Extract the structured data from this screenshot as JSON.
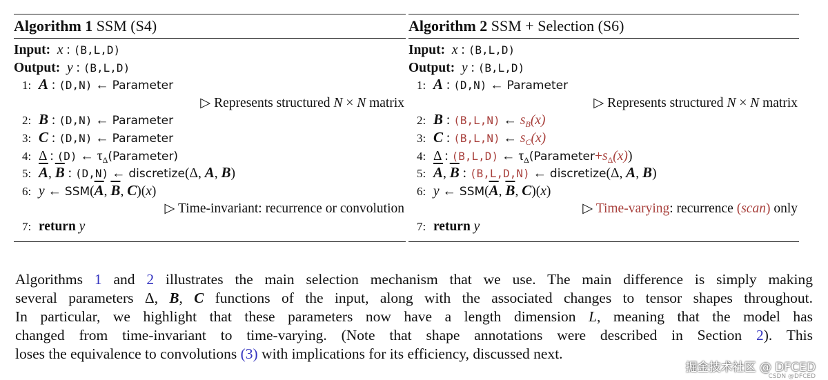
{
  "algorithms": [
    {
      "label": "Algorithm 1",
      "name": "SSM (S4)",
      "lines": [
        {
          "kind": "io",
          "segs": [
            {
              "t": "Input:",
              "c": "b"
            },
            {
              "t": "  x",
              "c": "i"
            },
            {
              "t": " : "
            },
            {
              "t": "(B,L,D)",
              "c": "t"
            }
          ]
        },
        {
          "kind": "io",
          "segs": [
            {
              "t": "Output:",
              "c": "b"
            },
            {
              "t": "  y",
              "c": "i"
            },
            {
              "t": " : "
            },
            {
              "t": "(B,L,D)",
              "c": "t"
            }
          ]
        },
        {
          "kind": "ind",
          "num": "1:",
          "segs": [
            {
              "t": "A",
              "c": "m"
            },
            {
              "t": " : "
            },
            {
              "t": "(D,N)",
              "c": "t"
            },
            {
              "t": " ← "
            },
            {
              "t": "Parameter",
              "c": "s"
            }
          ]
        },
        {
          "kind": "cmt",
          "segs": [
            {
              "t": "▷ Represents structured "
            },
            {
              "t": "N",
              "c": "i"
            },
            {
              "t": " × "
            },
            {
              "t": "N",
              "c": "i"
            },
            {
              "t": " matrix"
            }
          ]
        },
        {
          "kind": "ind",
          "num": "2:",
          "segs": [
            {
              "t": "B",
              "c": "m"
            },
            {
              "t": " : "
            },
            {
              "t": "(D,N)",
              "c": "t"
            },
            {
              "t": " ← "
            },
            {
              "t": "Parameter",
              "c": "s"
            }
          ]
        },
        {
          "kind": "ind",
          "num": "3:",
          "segs": [
            {
              "t": "C",
              "c": "m"
            },
            {
              "t": " : "
            },
            {
              "t": "(D,N)",
              "c": "t"
            },
            {
              "t": " ← "
            },
            {
              "t": "Parameter",
              "c": "s"
            }
          ]
        },
        {
          "kind": "ind",
          "num": "4:",
          "segs": [
            {
              "t": "Δ"
            },
            {
              "t": " : "
            },
            {
              "t": "(D)",
              "c": "t"
            },
            {
              "t": " ← τ"
            },
            {
              "t": "Δ",
              "c": "sub"
            },
            {
              "t": "(Parameter)",
              "c": "s"
            }
          ]
        },
        {
          "kind": "ind",
          "num": "5:",
          "segs": [
            {
              "t": "A",
              "c": "m ol"
            },
            {
              "t": ", "
            },
            {
              "t": "B",
              "c": "m ol"
            },
            {
              "t": " : "
            },
            {
              "t": "(D,N)",
              "c": "t"
            },
            {
              "t": " ← "
            },
            {
              "t": "discretize",
              "c": "s"
            },
            {
              "t": "(Δ, "
            },
            {
              "t": "A",
              "c": "m"
            },
            {
              "t": ", "
            },
            {
              "t": "B",
              "c": "m"
            },
            {
              "t": ")"
            }
          ]
        },
        {
          "kind": "ind",
          "num": "6:",
          "segs": [
            {
              "t": "y",
              "c": "i"
            },
            {
              "t": " ← "
            },
            {
              "t": "SSM",
              "c": "s"
            },
            {
              "t": "("
            },
            {
              "t": "A",
              "c": "m ol"
            },
            {
              "t": ", "
            },
            {
              "t": "B",
              "c": "m ol"
            },
            {
              "t": ", "
            },
            {
              "t": "C",
              "c": "m"
            },
            {
              "t": ")("
            },
            {
              "t": "x",
              "c": "i"
            },
            {
              "t": ")"
            }
          ]
        },
        {
          "kind": "cmt",
          "segs": [
            {
              "t": "▷ Time-invariant: recurrence or convolution"
            }
          ]
        },
        {
          "kind": "ind",
          "num": "7:",
          "segs": [
            {
              "t": "return",
              "c": "b"
            },
            {
              "t": " y",
              "c": "i"
            }
          ]
        }
      ]
    },
    {
      "label": "Algorithm 2",
      "name": "SSM + Selection (S6)",
      "lines": [
        {
          "kind": "io",
          "segs": [
            {
              "t": "Input:",
              "c": "b"
            },
            {
              "t": "  x",
              "c": "i"
            },
            {
              "t": " : "
            },
            {
              "t": "(B,L,D)",
              "c": "t"
            }
          ]
        },
        {
          "kind": "io",
          "segs": [
            {
              "t": "Output:",
              "c": "b"
            },
            {
              "t": "  y",
              "c": "i"
            },
            {
              "t": " : "
            },
            {
              "t": "(B,L,D)",
              "c": "t"
            }
          ]
        },
        {
          "kind": "ind",
          "num": "1:",
          "segs": [
            {
              "t": "A",
              "c": "m"
            },
            {
              "t": " : "
            },
            {
              "t": "(D,N)",
              "c": "t"
            },
            {
              "t": " ← "
            },
            {
              "t": "Parameter",
              "c": "s"
            }
          ]
        },
        {
          "kind": "cmt",
          "segs": [
            {
              "t": "▷ Represents structured "
            },
            {
              "t": "N",
              "c": "i"
            },
            {
              "t": " × "
            },
            {
              "t": "N",
              "c": "i"
            },
            {
              "t": " matrix"
            }
          ]
        },
        {
          "kind": "ind",
          "num": "2:",
          "segs": [
            {
              "t": "B",
              "c": "m"
            },
            {
              "t": " : "
            },
            {
              "t": "(B,L,N)",
              "c": "t r"
            },
            {
              "t": " ← "
            },
            {
              "t": "s",
              "c": "i r"
            },
            {
              "t": "B",
              "c": "sub i r"
            },
            {
              "t": "(x)",
              "c": "i r"
            }
          ]
        },
        {
          "kind": "ind",
          "num": "3:",
          "segs": [
            {
              "t": "C",
              "c": "m"
            },
            {
              "t": " : "
            },
            {
              "t": "(B,L,N)",
              "c": "t r"
            },
            {
              "t": " ← "
            },
            {
              "t": "s",
              "c": "i r"
            },
            {
              "t": "C",
              "c": "sub i r"
            },
            {
              "t": "(x)",
              "c": "i r"
            }
          ]
        },
        {
          "kind": "ind",
          "num": "4:",
          "segs": [
            {
              "t": "Δ"
            },
            {
              "t": " : "
            },
            {
              "t": "(B,L,D)",
              "c": "t r"
            },
            {
              "t": " ← τ"
            },
            {
              "t": "Δ",
              "c": "sub"
            },
            {
              "t": "(Parameter",
              "c": "s"
            },
            {
              "t": "+",
              "c": "r"
            },
            {
              "t": "s",
              "c": "i r"
            },
            {
              "t": "Δ",
              "c": "sub r"
            },
            {
              "t": "(x)",
              "c": "i r"
            },
            {
              "t": ")"
            }
          ]
        },
        {
          "kind": "ind",
          "num": "5:",
          "segs": [
            {
              "t": "A",
              "c": "m ol"
            },
            {
              "t": ", "
            },
            {
              "t": "B",
              "c": "m ol"
            },
            {
              "t": " : "
            },
            {
              "t": "(B,L,D,N)",
              "c": "t r"
            },
            {
              "t": " ← "
            },
            {
              "t": "discretize",
              "c": "s"
            },
            {
              "t": "(Δ, "
            },
            {
              "t": "A",
              "c": "m"
            },
            {
              "t": ", "
            },
            {
              "t": "B",
              "c": "m"
            },
            {
              "t": ")"
            }
          ]
        },
        {
          "kind": "ind",
          "num": "6:",
          "segs": [
            {
              "t": "y",
              "c": "i"
            },
            {
              "t": " ← "
            },
            {
              "t": "SSM",
              "c": "s"
            },
            {
              "t": "("
            },
            {
              "t": "A",
              "c": "m ol"
            },
            {
              "t": ", "
            },
            {
              "t": "B",
              "c": "m ol"
            },
            {
              "t": ", "
            },
            {
              "t": "C",
              "c": "m"
            },
            {
              "t": ")("
            },
            {
              "t": "x",
              "c": "i"
            },
            {
              "t": ")"
            }
          ]
        },
        {
          "kind": "cmt",
          "segs": [
            {
              "t": "▷ "
            },
            {
              "t": "Time-varying",
              "c": "r"
            },
            {
              "t": ": recurrence "
            },
            {
              "t": "(",
              "c": "r"
            },
            {
              "t": "scan",
              "c": "i r"
            },
            {
              "t": ")",
              "c": "r"
            },
            {
              "t": " only"
            }
          ]
        },
        {
          "kind": "ind",
          "num": "7:",
          "segs": [
            {
              "t": "return",
              "c": "b"
            },
            {
              "t": " y",
              "c": "i"
            }
          ]
        }
      ]
    }
  ],
  "paragraph": [
    [
      {
        "t": "Algorithms "
      },
      {
        "t": "1",
        "c": "lnk"
      },
      {
        "t": " and "
      },
      {
        "t": "2",
        "c": "lnk"
      },
      {
        "t": " illustrates the main selection mechanism that we use. The main difference is simply making"
      }
    ],
    [
      {
        "t": "several parameters "
      },
      {
        "t": "Δ, "
      },
      {
        "t": "B",
        "c": "m"
      },
      {
        "t": ", "
      },
      {
        "t": "C",
        "c": "m"
      },
      {
        "t": " functions of the input, along with the associated changes to tensor shapes throughout."
      }
    ],
    [
      {
        "t": "In particular, we highlight that these parameters now have a length dimension "
      },
      {
        "t": "L",
        "c": "i"
      },
      {
        "t": ", meaning that the model has"
      }
    ],
    [
      {
        "t": "changed from time-invariant to time-varying. (Note that shape annotations were described in Section "
      },
      {
        "t": "2",
        "c": "lnk"
      },
      {
        "t": "). This"
      }
    ],
    [
      {
        "t": "loses the equivalence to convolutions "
      },
      {
        "t": "(3)",
        "c": "lnk"
      },
      {
        "t": " with implications for its efficiency, discussed next."
      }
    ]
  ],
  "watermark": {
    "main": "掘金技术社区 @ DFCED",
    "small": "CSDN @DFCED"
  }
}
